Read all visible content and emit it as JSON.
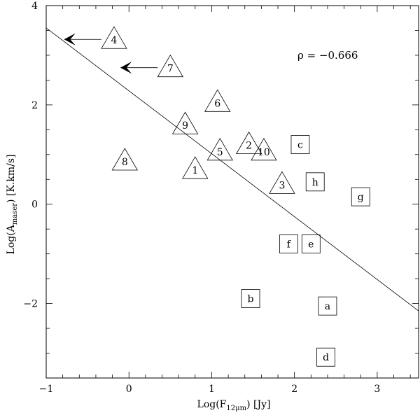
{
  "chart_data": {
    "type": "scatter",
    "xlabel": "Log(F",
    "xlabel_sub": "12μm",
    "xlabel_tail": ") [Jy]",
    "ylabel": "Log(A",
    "ylabel_sub": "maser",
    "ylabel_tail": ") [K.km/s]",
    "xlim": [
      -1,
      3.5
    ],
    "ylim": [
      -3.5,
      4
    ],
    "xticks": [
      -1,
      0,
      1,
      2,
      3
    ],
    "yticks": [
      -2,
      0,
      2,
      4
    ],
    "annotation": "ρ = −0.666",
    "fit_line": {
      "x": [
        -1,
        3.5
      ],
      "y": [
        3.55,
        -2.15
      ]
    },
    "series": [
      {
        "marker": "triangle",
        "points": [
          {
            "label": "1",
            "x": 0.8,
            "y": 0.7
          },
          {
            "label": "2",
            "x": 1.45,
            "y": 1.2
          },
          {
            "label": "3",
            "x": 1.85,
            "y": 0.4
          },
          {
            "label": "4",
            "x": -0.18,
            "y": 3.32,
            "upper_limit_x": -0.78
          },
          {
            "label": "5",
            "x": 1.1,
            "y": 1.07
          },
          {
            "label": "6",
            "x": 1.07,
            "y": 2.05
          },
          {
            "label": "7",
            "x": 0.5,
            "y": 2.75,
            "upper_limit_x": -0.1
          },
          {
            "label": "8",
            "x": -0.05,
            "y": 0.87
          },
          {
            "label": "9",
            "x": 0.68,
            "y": 1.6
          },
          {
            "label": "10",
            "x": 1.63,
            "y": 1.07
          }
        ]
      },
      {
        "marker": "square",
        "points": [
          {
            "label": "a",
            "x": 2.4,
            "y": -2.05
          },
          {
            "label": "b",
            "x": 1.47,
            "y": -1.9
          },
          {
            "label": "c",
            "x": 2.07,
            "y": 1.2
          },
          {
            "label": "d",
            "x": 2.38,
            "y": -3.08
          },
          {
            "label": "e",
            "x": 2.2,
            "y": -0.8
          },
          {
            "label": "f",
            "x": 1.93,
            "y": -0.8
          },
          {
            "label": "g",
            "x": 2.8,
            "y": 0.15
          },
          {
            "label": "h",
            "x": 2.25,
            "y": 0.45
          }
        ]
      }
    ]
  }
}
